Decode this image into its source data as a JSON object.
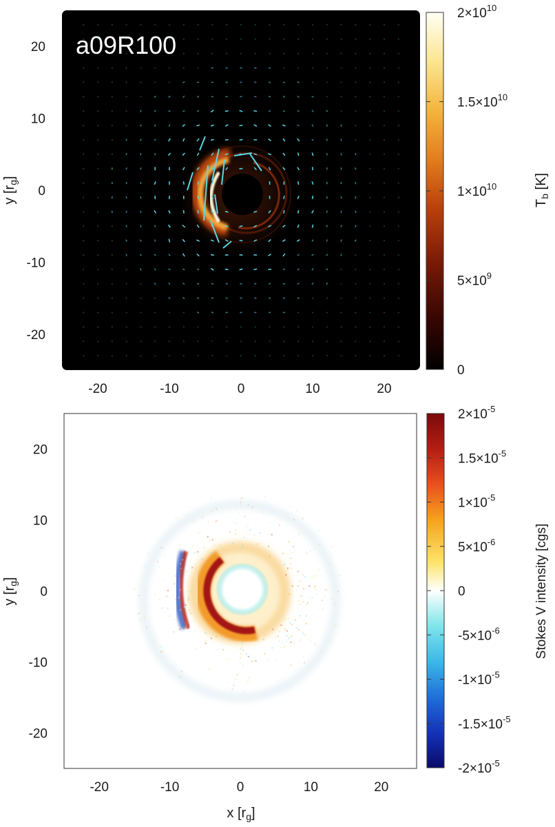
{
  "chart_data": [
    {
      "type": "heatmap",
      "title": "a09R100",
      "xlabel": "",
      "ylabel_main": "y [r",
      "ylabel_sub": "g",
      "ylabel_close": "]",
      "xlim": [
        -25,
        25
      ],
      "ylim": [
        -25,
        25
      ],
      "x_ticks": [
        -20,
        -10,
        0,
        10,
        20
      ],
      "y_ticks": [
        20,
        10,
        0,
        -10,
        -20
      ],
      "x_tick_labels": [
        "-20",
        "-10",
        "0",
        "10",
        "20"
      ],
      "y_tick_labels": [
        "20",
        "10",
        "0",
        "-10",
        "-20"
      ],
      "background": "black",
      "colormap": "black-red-orange-yellow-white",
      "colorbar": {
        "label_main": "T",
        "label_sub": "b",
        "label_rest": " [K]",
        "range": [
          0,
          20000000000
        ],
        "ticks": [
          {
            "value": 20000000000,
            "mantissa": "2×10",
            "exp": "10"
          },
          {
            "value": 15000000000,
            "mantissa": "1.5×10",
            "exp": "10"
          },
          {
            "value": 10000000000,
            "mantissa": "1×10",
            "exp": "10"
          },
          {
            "value": 5000000000,
            "mantissa": "5×10",
            "exp": "9"
          },
          {
            "value": 0,
            "mantissa": "0",
            "exp": ""
          }
        ]
      },
      "features": {
        "ring": {
          "center": [
            -0.5,
            -0.3
          ],
          "radius": 5.0
        },
        "crescent_side": "left",
        "shadow_center": [
          -0.5,
          -0.5
        ],
        "polarization_vector_color": "#5ad8e6"
      }
    },
    {
      "type": "heatmap",
      "xlabel_main": "x [r",
      "xlabel_sub": "g",
      "xlabel_close": "]",
      "ylabel_main": "y [r",
      "ylabel_sub": "g",
      "ylabel_close": "]",
      "xlim": [
        -25,
        25
      ],
      "ylim": [
        -25,
        25
      ],
      "x_ticks": [
        -20,
        -10,
        0,
        10,
        20
      ],
      "y_ticks": [
        20,
        10,
        0,
        -10,
        -20
      ],
      "x_tick_labels": [
        "-20",
        "-10",
        "0",
        "10",
        "20"
      ],
      "y_tick_labels": [
        "20",
        "10",
        "0",
        "-10",
        "-20"
      ],
      "background": "white",
      "colormap": "diverging blue-cyan-white-yellow-red",
      "colorbar": {
        "label": "Stokes V intensity [cgs]",
        "range": [
          -2e-05,
          2e-05
        ],
        "ticks": [
          {
            "value": 2e-05,
            "mantissa": "2×10",
            "exp": "-5"
          },
          {
            "value": 1.5e-05,
            "mantissa": "1.5×10",
            "exp": "-5"
          },
          {
            "value": 1e-05,
            "mantissa": "1×10",
            "exp": "-5"
          },
          {
            "value": 5e-06,
            "mantissa": "5×10",
            "exp": "-6"
          },
          {
            "value": 0,
            "mantissa": "0",
            "exp": ""
          },
          {
            "value": -5e-06,
            "mantissa": "-5×10",
            "exp": "-6"
          },
          {
            "value": -1e-05,
            "mantissa": "-1×10",
            "exp": "-5"
          },
          {
            "value": -1.5e-05,
            "mantissa": "-1.5×10",
            "exp": "-5"
          },
          {
            "value": -2e-05,
            "mantissa": "-2×10",
            "exp": "-5"
          }
        ]
      },
      "features": {
        "ring": {
          "center": [
            -0.5,
            -0.5
          ],
          "radius": 5.0
        },
        "positive_arc_side": "left",
        "negative_core": "inside shadow"
      }
    }
  ]
}
